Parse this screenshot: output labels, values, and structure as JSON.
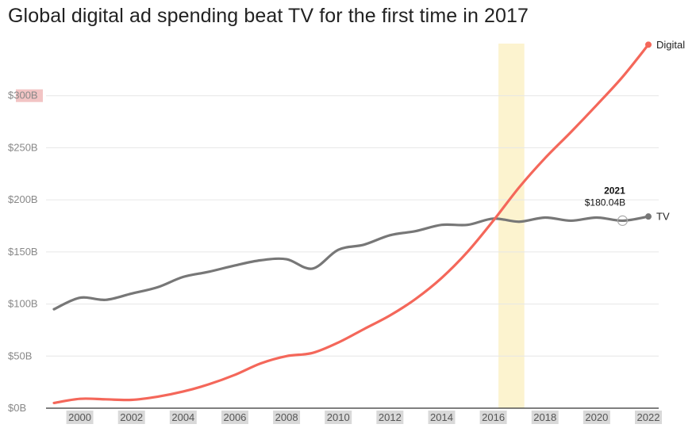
{
  "chart_data": {
    "type": "line",
    "title": "Global digital ad spending beat TV for the first time in 2017",
    "xlabel": "",
    "ylabel": "",
    "xlim": [
      1999,
      2022
    ],
    "ylim": [
      0,
      350
    ],
    "yticks": [
      {
        "value": 0,
        "label": "$0B"
      },
      {
        "value": 50,
        "label": "$50B"
      },
      {
        "value": 100,
        "label": "$100B"
      },
      {
        "value": 150,
        "label": "$150B"
      },
      {
        "value": 200,
        "label": "$200B"
      },
      {
        "value": 250,
        "label": "$250B"
      },
      {
        "value": 300,
        "label": "$300B"
      }
    ],
    "xticks": [
      "2000",
      "2002",
      "2004",
      "2006",
      "2008",
      "2010",
      "2012",
      "2014",
      "2016",
      "2018",
      "2020",
      "2022"
    ],
    "highlight_band": {
      "from": 2016.2,
      "to": 2017.2,
      "color": "#fcf3cf"
    },
    "series": [
      {
        "name": "Digital",
        "color": "#f4675a",
        "x": [
          1999,
          2000,
          2001,
          2002,
          2003,
          2004,
          2005,
          2006,
          2007,
          2008,
          2009,
          2010,
          2011,
          2012,
          2013,
          2014,
          2015,
          2016,
          2017,
          2018,
          2019,
          2020,
          2021,
          2022
        ],
        "values": [
          5,
          9,
          8.5,
          8,
          11,
          16,
          23,
          32,
          43,
          50,
          53,
          63,
          76,
          89,
          105,
          125,
          150,
          180,
          212,
          240,
          265,
          291,
          318,
          349
        ]
      },
      {
        "name": "TV",
        "color": "#777777",
        "x": [
          1999,
          2000,
          2001,
          2002,
          2003,
          2004,
          2005,
          2006,
          2007,
          2008,
          2009,
          2010,
          2011,
          2012,
          2013,
          2014,
          2015,
          2016,
          2017,
          2018,
          2019,
          2020,
          2021,
          2022
        ],
        "values": [
          95,
          106,
          104,
          110,
          116,
          126,
          131,
          137,
          142,
          143,
          134,
          152,
          157,
          166,
          170,
          176,
          176,
          182,
          179,
          183,
          180,
          183,
          180,
          184
        ]
      }
    ],
    "annotation": {
      "year": "2021",
      "value_label": "$180.04B",
      "x": 2021,
      "y": 180.04
    }
  }
}
